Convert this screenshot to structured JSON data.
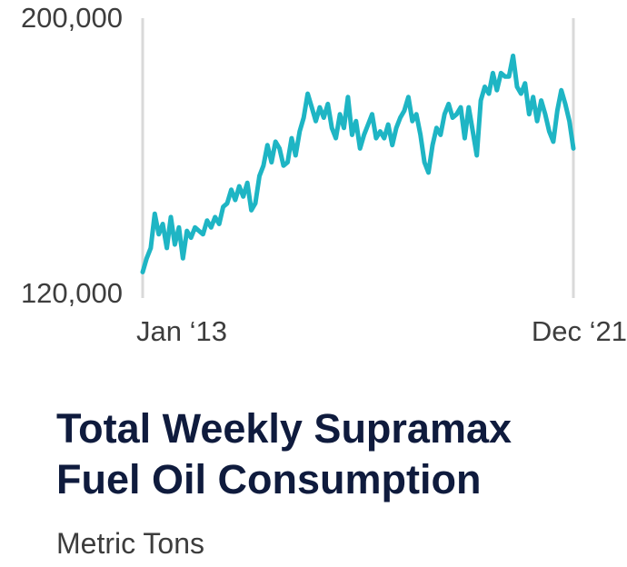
{
  "chart_data": {
    "type": "line",
    "title_lines": [
      "Total Weekly Supramax",
      "Fuel Oil Consumption"
    ],
    "subtitle": "Metric Tons",
    "ylabel": "Metric Tons",
    "ylim": [
      120000,
      200000
    ],
    "y_tick_labels": [
      "200,000",
      "120,000"
    ],
    "x_range": [
      "2013-01",
      "2021-12"
    ],
    "x_tick_labels": [
      "Jan ‘13",
      "Dec ‘21"
    ],
    "grid": false,
    "series_color": "#1eb5c4",
    "axis_line_color": "#d9d9d9",
    "series": [
      {
        "x": [
          "2013-01",
          "2013-02",
          "2013-03",
          "2013-04",
          "2013-05",
          "2013-06",
          "2013-07",
          "2013-08",
          "2013-09",
          "2013-10",
          "2013-11",
          "2013-12",
          "2014-01",
          "2014-02",
          "2014-03",
          "2014-04",
          "2014-05",
          "2014-06",
          "2014-07",
          "2014-08",
          "2014-09",
          "2014-10",
          "2014-11",
          "2014-12",
          "2015-01",
          "2015-02",
          "2015-03",
          "2015-04",
          "2015-05",
          "2015-06",
          "2015-07",
          "2015-08",
          "2015-09",
          "2015-10",
          "2015-11",
          "2015-12",
          "2016-01",
          "2016-02",
          "2016-03",
          "2016-04",
          "2016-05",
          "2016-06",
          "2016-07",
          "2016-08",
          "2016-09",
          "2016-10",
          "2016-11",
          "2016-12",
          "2017-01",
          "2017-02",
          "2017-03",
          "2017-04",
          "2017-05",
          "2017-06",
          "2017-07",
          "2017-08",
          "2017-09",
          "2017-10",
          "2017-11",
          "2017-12",
          "2018-01",
          "2018-02",
          "2018-03",
          "2018-04",
          "2018-05",
          "2018-06",
          "2018-07",
          "2018-08",
          "2018-09",
          "2018-10",
          "2018-11",
          "2018-12",
          "2019-01",
          "2019-02",
          "2019-03",
          "2019-04",
          "2019-05",
          "2019-06",
          "2019-07",
          "2019-08",
          "2019-09",
          "2019-10",
          "2019-11",
          "2019-12",
          "2020-01",
          "2020-02",
          "2020-03",
          "2020-04",
          "2020-05",
          "2020-06",
          "2020-07",
          "2020-08",
          "2020-09",
          "2020-10",
          "2020-11",
          "2020-12",
          "2021-01",
          "2021-02",
          "2021-03",
          "2021-04",
          "2021-05",
          "2021-06",
          "2021-07",
          "2021-08",
          "2021-09",
          "2021-10",
          "2021-11",
          "2021-12"
        ],
        "values": [
          126000,
          130000,
          133000,
          143000,
          137000,
          140000,
          133000,
          142000,
          134000,
          139000,
          130000,
          138000,
          136000,
          139000,
          138000,
          137000,
          141000,
          139000,
          142000,
          140000,
          145000,
          146000,
          150000,
          147000,
          151000,
          148000,
          152000,
          144000,
          146000,
          154000,
          157000,
          163000,
          158000,
          164000,
          162000,
          157000,
          158000,
          165000,
          160000,
          167000,
          171000,
          178000,
          174000,
          170000,
          174000,
          171000,
          175000,
          168000,
          165000,
          172000,
          168000,
          177000,
          166000,
          170000,
          162000,
          166000,
          169000,
          172000,
          165000,
          167000,
          165000,
          169000,
          163000,
          168000,
          171000,
          173000,
          177000,
          170000,
          172000,
          166000,
          158000,
          155000,
          163000,
          168000,
          166000,
          172000,
          175000,
          171000,
          172000,
          174000,
          165000,
          174000,
          167000,
          160000,
          176000,
          180000,
          178000,
          184000,
          179000,
          184000,
          183000,
          183000,
          189000,
          180000,
          178000,
          181000,
          172000,
          177000,
          170000,
          176000,
          172000,
          167000,
          164000,
          173000,
          179000,
          175000,
          170000,
          162000
        ]
      }
    ]
  }
}
